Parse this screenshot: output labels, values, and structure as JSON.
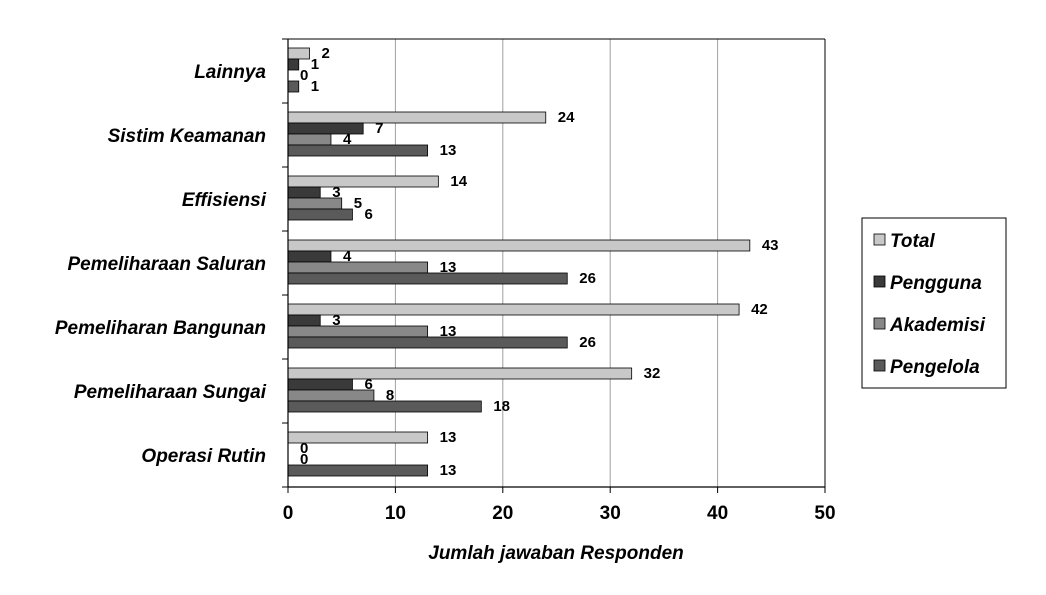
{
  "chart_data": {
    "type": "bar",
    "orientation": "horizontal",
    "title": "",
    "xlabel": "Jumlah  jawaban Responden",
    "ylabel": "",
    "xlim": [
      0,
      50
    ],
    "xticks": [
      0,
      10,
      20,
      30,
      40,
      50
    ],
    "grid": true,
    "legend_position": "right",
    "categories": [
      "Lainnya",
      "Sistim Keamanan",
      "Effisiensi",
      "Pemeliharaan Saluran",
      "Pemeliharan Bangunan",
      "Pemeliharaan Sungai",
      "Operasi Rutin"
    ],
    "series": [
      {
        "name": "Total",
        "color": "#c8c8c8",
        "values": [
          2,
          24,
          14,
          43,
          42,
          32,
          13
        ]
      },
      {
        "name": "Pengguna",
        "color": "#3a3a3a",
        "values": [
          1,
          7,
          3,
          4,
          3,
          6,
          0
        ]
      },
      {
        "name": "Akademisi",
        "color": "#888888",
        "values": [
          0,
          4,
          5,
          13,
          13,
          8,
          0
        ]
      },
      {
        "name": "Pengelola",
        "color": "#5a5a5a",
        "values": [
          1,
          13,
          6,
          26,
          26,
          18,
          13
        ]
      }
    ]
  }
}
